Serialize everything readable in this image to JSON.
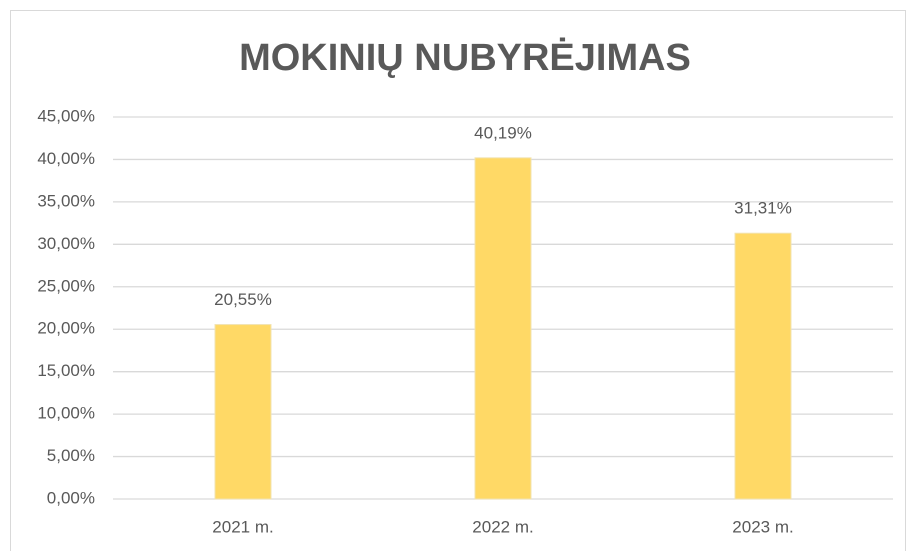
{
  "chart_data": {
    "type": "bar",
    "title": "MOKINIŲ NUBYRĖJIMAS",
    "categories": [
      "2021 m.",
      "2022 m.",
      "2023 m."
    ],
    "values": [
      20.55,
      40.19,
      31.31
    ],
    "value_labels": [
      "20,55%",
      "40,19%",
      "31,31%"
    ],
    "color": "#ffd966",
    "ylim": [
      0,
      45
    ],
    "yticks": [
      {
        "value": 0,
        "label": "0,00%"
      },
      {
        "value": 5,
        "label": "5,00%"
      },
      {
        "value": 10,
        "label": "10,00%"
      },
      {
        "value": 15,
        "label": "15,00%"
      },
      {
        "value": 20,
        "label": "20,00%"
      },
      {
        "value": 25,
        "label": "25,00%"
      },
      {
        "value": 30,
        "label": "30,00%"
      },
      {
        "value": 35,
        "label": "35,00%"
      },
      {
        "value": 40,
        "label": "40,00%"
      },
      {
        "value": 45,
        "label": "45,00%"
      }
    ],
    "grid": true
  }
}
